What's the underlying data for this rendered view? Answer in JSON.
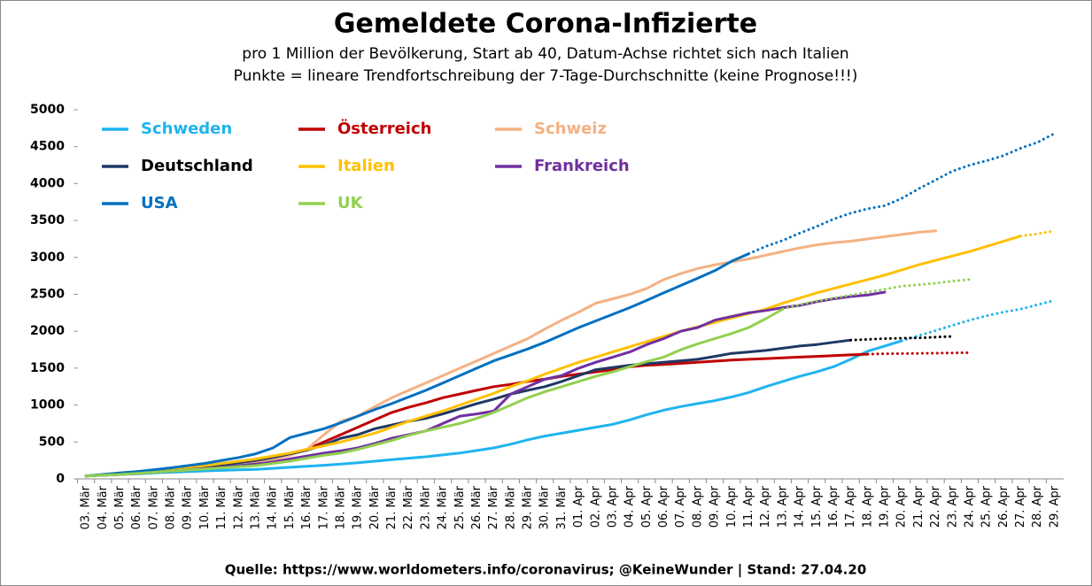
{
  "chart_data": {
    "type": "line",
    "title": "Gemeldete Corona-Infizierte",
    "subtitle": "pro 1 Million der Bevölkerung, Start ab 40, Datum-Achse richtet sich nach Italien",
    "subtitle2": "Punkte = lineare Trendfortschreibung der 7-Tage-Durchschnitte (keine Prognose!!!)",
    "source": "Quelle:  https://www.worldometers.info/coronavirus;  @KeineWunder    |    Stand: 27.04.20",
    "categories": [
      "03. Mär",
      "04. Mär",
      "05. Mär",
      "06. Mär",
      "07. Mär",
      "08. Mär",
      "09. Mär",
      "10. Mär",
      "11. Mär",
      "12. Mär",
      "13. Mär",
      "14. Mär",
      "15. Mär",
      "16. Mär",
      "17. Mär",
      "18. Mär",
      "19. Mär",
      "20. Mär",
      "21. Mär",
      "22. Mär",
      "23. Mär",
      "24. Mär",
      "25. Mär",
      "26. Mär",
      "27. Mär",
      "28. Mär",
      "29. Mär",
      "30. Mär",
      "31. Mär",
      "01. Apr",
      "02. Apr",
      "03. Apr",
      "04. Apr",
      "05. Apr",
      "06. Apr",
      "07. Apr",
      "08. Apr",
      "09. Apr",
      "10. Apr",
      "11. Apr",
      "12. Apr",
      "13. Apr",
      "14. Apr",
      "15. Apr",
      "16. Apr",
      "17. Apr",
      "18. Apr",
      "19. Apr",
      "20. Apr",
      "21. Apr",
      "22. Apr",
      "23. Apr",
      "24. Apr",
      "25. Apr",
      "26. Apr",
      "27. Apr",
      "28. Apr",
      "29. Apr"
    ],
    "ylim": [
      0,
      5000
    ],
    "yticks": [
      0,
      500,
      1000,
      1500,
      2000,
      2500,
      3000,
      3500,
      4000,
      4500,
      5000
    ],
    "series": [
      {
        "name": "Schweden",
        "color": "#1fb4ef",
        "values": [
          40,
          50,
          60,
          70,
          80,
          90,
          100,
          108,
          115,
          122,
          130,
          143,
          157,
          170,
          185,
          200,
          220,
          240,
          260,
          280,
          300,
          325,
          350,
          385,
          420,
          470,
          530,
          580,
          620,
          660,
          700,
          740,
          800,
          870,
          930,
          980,
          1020,
          1060,
          1110,
          1170,
          1250,
          1320,
          1390,
          1450,
          1520,
          1620,
          1730,
          1800,
          1870,
          null,
          null,
          null,
          null,
          null,
          null,
          null,
          null,
          null
        ],
        "trend": [
          null,
          null,
          null,
          null,
          null,
          null,
          null,
          null,
          null,
          null,
          null,
          null,
          null,
          null,
          null,
          null,
          null,
          null,
          null,
          null,
          null,
          null,
          null,
          null,
          null,
          null,
          null,
          null,
          null,
          null,
          null,
          null,
          null,
          null,
          null,
          null,
          null,
          null,
          null,
          null,
          null,
          null,
          null,
          null,
          null,
          null,
          null,
          null,
          1870,
          1940,
          2010,
          2080,
          2150,
          2210,
          2260,
          2300,
          2360,
          2420
        ]
      },
      {
        "name": "Österreich",
        "color": "#c00000",
        "values": [
          40,
          55,
          70,
          85,
          100,
          115,
          130,
          150,
          180,
          210,
          250,
          290,
          340,
          400,
          500,
          600,
          700,
          800,
          900,
          970,
          1030,
          1100,
          1150,
          1200,
          1250,
          1280,
          1320,
          1350,
          1390,
          1420,
          1450,
          1480,
          1520,
          1540,
          1550,
          1565,
          1580,
          1595,
          1610,
          1620,
          1630,
          1640,
          1650,
          1660,
          1670,
          1680,
          1690,
          null,
          null,
          null,
          null,
          null,
          null,
          null,
          null,
          null,
          null,
          null
        ],
        "trend": [
          null,
          null,
          null,
          null,
          null,
          null,
          null,
          null,
          null,
          null,
          null,
          null,
          null,
          null,
          null,
          null,
          null,
          null,
          null,
          null,
          null,
          null,
          null,
          null,
          null,
          null,
          null,
          null,
          null,
          null,
          null,
          null,
          null,
          null,
          null,
          null,
          null,
          null,
          null,
          null,
          null,
          null,
          null,
          null,
          null,
          null,
          1690,
          1695,
          1698,
          1700,
          1703,
          1706,
          1710,
          null,
          null,
          null,
          null,
          null
        ]
      },
      {
        "name": "Schweiz",
        "color": "#f4b183",
        "values": [
          40,
          55,
          70,
          85,
          100,
          120,
          140,
          160,
          180,
          200,
          220,
          260,
          320,
          400,
          600,
          780,
          850,
          980,
          1100,
          1200,
          1300,
          1400,
          1500,
          1600,
          1700,
          1800,
          1900,
          2030,
          2150,
          2260,
          2380,
          2440,
          2500,
          2580,
          2700,
          2780,
          2850,
          2900,
          2940,
          2980,
          3030,
          3080,
          3130,
          3170,
          3200,
          3220,
          3250,
          3280,
          3310,
          3340,
          3360,
          null,
          null,
          null,
          null,
          null,
          null,
          null
        ]
      },
      {
        "name": "Deutschland",
        "color": "#1f3864",
        "trend_color": "#000000",
        "values": [
          40,
          55,
          70,
          85,
          100,
          120,
          140,
          160,
          190,
          220,
          250,
          290,
          340,
          390,
          460,
          550,
          600,
          680,
          730,
          780,
          820,
          880,
          950,
          1020,
          1080,
          1150,
          1200,
          1250,
          1320,
          1400,
          1480,
          1510,
          1540,
          1560,
          1580,
          1600,
          1620,
          1660,
          1700,
          1720,
          1740,
          1770,
          1800,
          1820,
          1850,
          1880,
          null,
          null,
          null,
          null,
          null,
          null,
          null,
          null,
          null,
          null,
          null,
          null
        ],
        "trend": [
          null,
          null,
          null,
          null,
          null,
          null,
          null,
          null,
          null,
          null,
          null,
          null,
          null,
          null,
          null,
          null,
          null,
          null,
          null,
          null,
          null,
          null,
          null,
          null,
          null,
          null,
          null,
          null,
          null,
          null,
          null,
          null,
          null,
          null,
          null,
          null,
          null,
          null,
          null,
          null,
          null,
          null,
          null,
          null,
          null,
          1880,
          1890,
          1900,
          1905,
          1910,
          1920,
          1930,
          null,
          null,
          null,
          null,
          null,
          null
        ]
      },
      {
        "name": "Italien",
        "color": "#ffc000",
        "values": [
          40,
          60,
          80,
          100,
          120,
          140,
          160,
          180,
          210,
          240,
          270,
          310,
          350,
          400,
          450,
          500,
          560,
          620,
          700,
          780,
          850,
          920,
          1000,
          1080,
          1160,
          1250,
          1330,
          1420,
          1500,
          1580,
          1650,
          1720,
          1790,
          1860,
          1930,
          2000,
          2060,
          2120,
          2180,
          2240,
          2300,
          2380,
          2450,
          2520,
          2580,
          2640,
          2700,
          2760,
          2830,
          2900,
          2960,
          3020,
          3080,
          3150,
          3220,
          3290,
          null,
          null
        ],
        "trend": [
          null,
          null,
          null,
          null,
          null,
          null,
          null,
          null,
          null,
          null,
          null,
          null,
          null,
          null,
          null,
          null,
          null,
          null,
          null,
          null,
          null,
          null,
          null,
          null,
          null,
          null,
          null,
          null,
          null,
          null,
          null,
          null,
          null,
          null,
          null,
          null,
          null,
          null,
          null,
          null,
          null,
          null,
          null,
          null,
          null,
          null,
          null,
          null,
          null,
          null,
          null,
          null,
          null,
          null,
          null,
          3290,
          3320,
          3360
        ]
      },
      {
        "name": "Frankreich",
        "color": "#7030a0",
        "values": [
          40,
          50,
          60,
          75,
          90,
          105,
          120,
          140,
          160,
          180,
          200,
          230,
          270,
          310,
          350,
          380,
          420,
          480,
          550,
          600,
          650,
          750,
          850,
          880,
          920,
          1150,
          1250,
          1350,
          1400,
          1500,
          1580,
          1650,
          1720,
          1820,
          1900,
          2000,
          2050,
          2150,
          2200,
          2250,
          2280,
          2320,
          2350,
          2400,
          2440,
          2470,
          2490,
          2530,
          null,
          null,
          null,
          null,
          null,
          null,
          null,
          null,
          null,
          null
        ]
      },
      {
        "name": "USA",
        "color": "#0070c0",
        "values": [
          40,
          60,
          80,
          100,
          125,
          150,
          180,
          210,
          250,
          290,
          340,
          420,
          560,
          620,
          680,
          760,
          850,
          940,
          1020,
          1110,
          1200,
          1300,
          1400,
          1500,
          1600,
          1680,
          1760,
          1850,
          1950,
          2050,
          2140,
          2230,
          2320,
          2420,
          2520,
          2620,
          2720,
          2820,
          2950,
          3050,
          null,
          null,
          null,
          null,
          null,
          null,
          null,
          null,
          null,
          null,
          null,
          null,
          null,
          null,
          null,
          null,
          null,
          null
        ],
        "trend": [
          null,
          null,
          null,
          null,
          null,
          null,
          null,
          null,
          null,
          null,
          null,
          null,
          null,
          null,
          null,
          null,
          null,
          null,
          null,
          null,
          null,
          null,
          null,
          null,
          null,
          null,
          null,
          null,
          null,
          null,
          null,
          null,
          null,
          null,
          null,
          null,
          null,
          null,
          null,
          3050,
          3150,
          3230,
          3330,
          3420,
          3520,
          3600,
          3660,
          3700,
          3800,
          3930,
          4050,
          4170,
          4250,
          4310,
          4380,
          4480,
          4560,
          4680
        ]
      },
      {
        "name": "UK",
        "color": "#92d050",
        "values": [
          40,
          50,
          60,
          75,
          90,
          105,
          120,
          135,
          150,
          165,
          180,
          210,
          240,
          280,
          320,
          350,
          400,
          460,
          520,
          590,
          650,
          700,
          750,
          820,
          900,
          1000,
          1100,
          1180,
          1250,
          1320,
          1390,
          1450,
          1520,
          1590,
          1650,
          1750,
          1830,
          1900,
          1970,
          2050,
          2170,
          2300,
          null,
          null,
          null,
          null,
          null,
          null,
          null,
          null,
          null,
          null,
          null,
          null,
          null,
          null,
          null,
          null
        ],
        "trend": [
          null,
          null,
          null,
          null,
          null,
          null,
          null,
          null,
          null,
          null,
          null,
          null,
          null,
          null,
          null,
          null,
          null,
          null,
          null,
          null,
          null,
          null,
          null,
          null,
          null,
          null,
          null,
          null,
          null,
          null,
          null,
          null,
          null,
          null,
          null,
          null,
          null,
          null,
          null,
          null,
          null,
          2300,
          2360,
          2410,
          2450,
          2490,
          2530,
          2570,
          2610,
          2630,
          2650,
          2680,
          2700,
          null,
          null,
          null,
          null,
          null
        ]
      }
    ]
  }
}
